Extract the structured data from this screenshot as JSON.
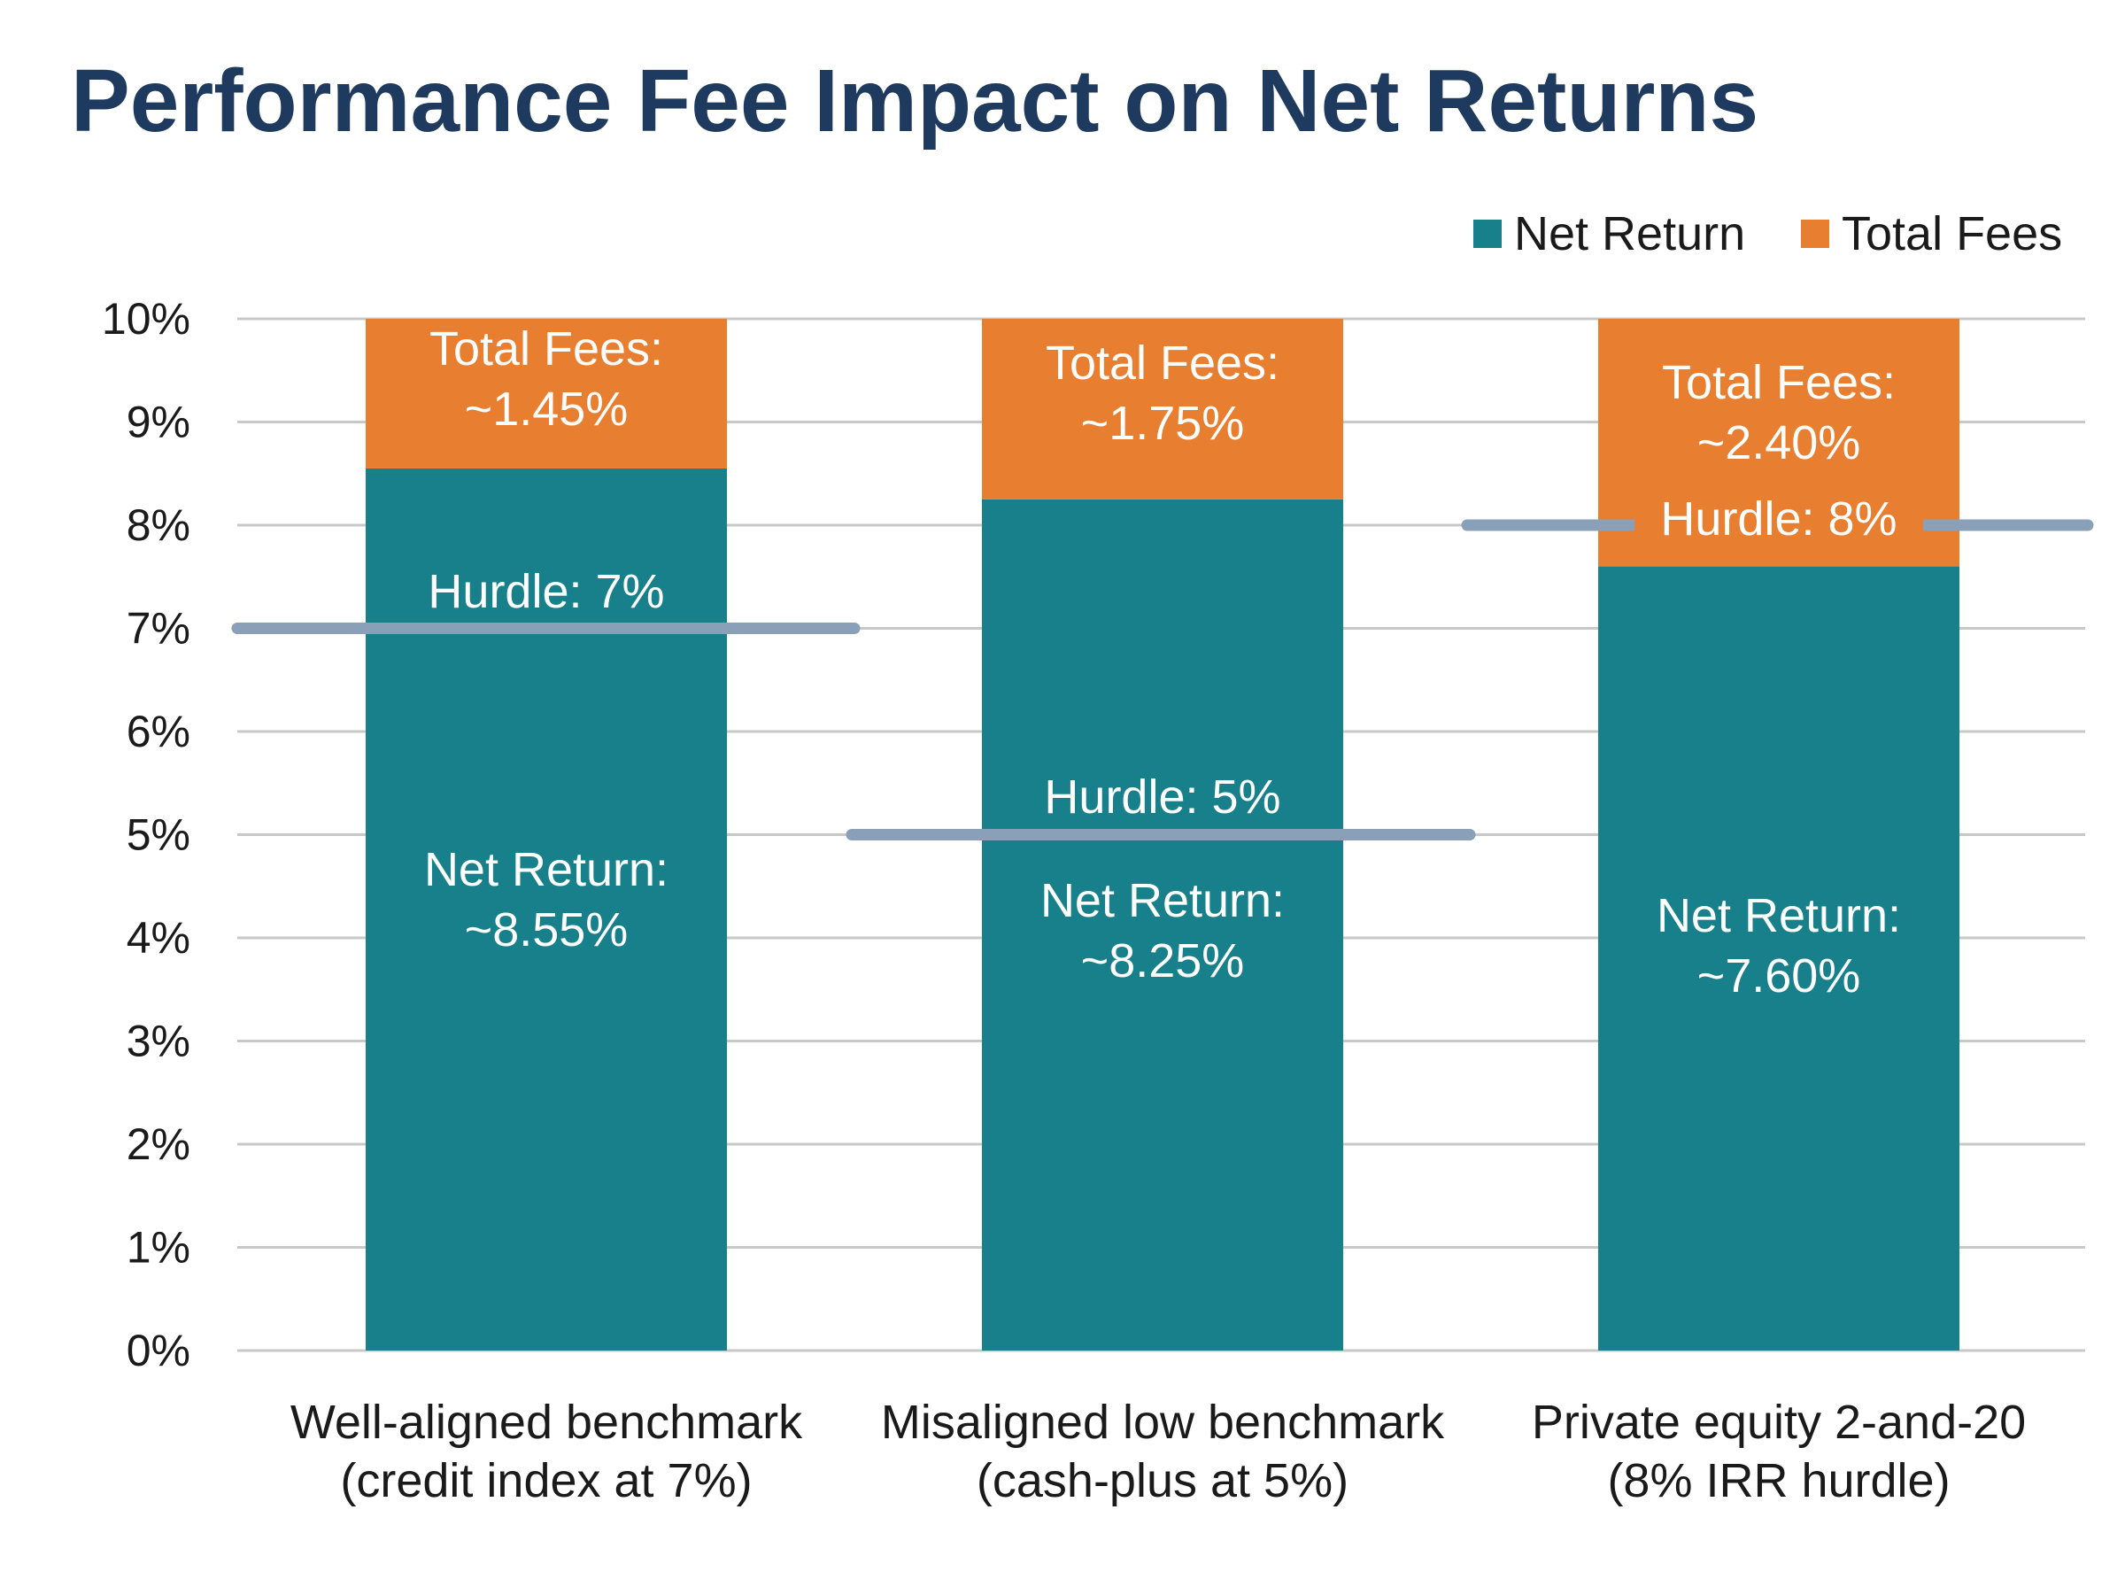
{
  "title": "Performance Fee Impact on Net Returns",
  "colors": {
    "net_return": "#17808A",
    "total_fees": "#E87E2F",
    "title": "#1E3A5F",
    "hurdle_line": "#8A9FB8",
    "grid": "#C8C8C8",
    "text": "#1A1A1A",
    "bar_label": "#FFFFFF"
  },
  "chart_data": {
    "type": "bar",
    "stacked": true,
    "title": "Performance Fee Impact on Net Returns",
    "categories": [
      [
        "Well-aligned benchmark",
        "(credit index at 7%)"
      ],
      [
        "Misaligned low benchmark",
        "(cash-plus at 5%)"
      ],
      [
        "Private equity 2-and-20",
        "(8% IRR hurdle)"
      ]
    ],
    "series": [
      {
        "name": "Net Return",
        "values": [
          8.55,
          8.25,
          7.6
        ],
        "labels": [
          [
            "Net Return:",
            "~8.55%"
          ],
          [
            "Net Return:",
            "~8.25%"
          ],
          [
            "Net Return:",
            "~7.60%"
          ]
        ]
      },
      {
        "name": "Total Fees",
        "values": [
          1.45,
          1.75,
          2.4
        ],
        "labels": [
          [
            "Total Fees:",
            "~1.45%"
          ],
          [
            "Total Fees:",
            "~1.75%"
          ],
          [
            "Total Fees:",
            "~2.40%"
          ]
        ]
      }
    ],
    "hurdles": [
      {
        "value": 7,
        "label": "Hurdle: 7%"
      },
      {
        "value": 5,
        "label": "Hurdle: 5%"
      },
      {
        "value": 8,
        "label": "Hurdle: 8%"
      }
    ],
    "yticks": [
      "0%",
      "1%",
      "2%",
      "3%",
      "4%",
      "5%",
      "6%",
      "7%",
      "8%",
      "9%",
      "10%"
    ],
    "ylim": [
      0,
      10
    ],
    "grid": true,
    "legend_position": "top-right",
    "xlabel": "",
    "ylabel": ""
  }
}
